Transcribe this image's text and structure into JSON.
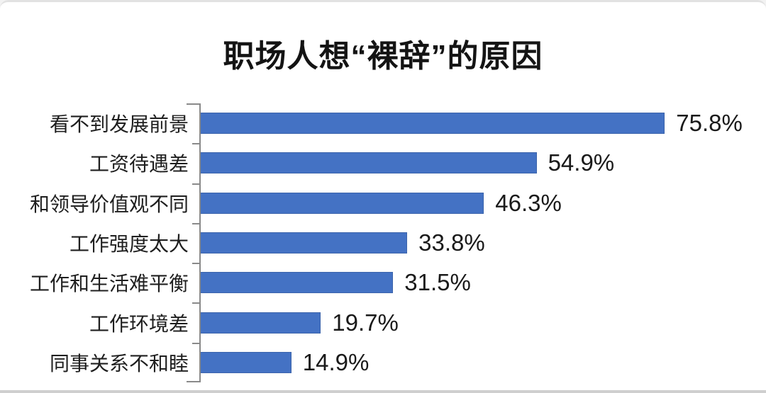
{
  "colors": {
    "bar_fill": "#4472c4",
    "bar_border": "#3c64ab",
    "axis": "#8a8a8a",
    "text": "#1f1f1f",
    "background": "#ffffff"
  },
  "chart_data": {
    "type": "bar",
    "orientation": "horizontal",
    "title": "职场人想“裸辞”的原因",
    "categories": [
      "看不到发展前景",
      "工资待遇差",
      "和领导价值观不同",
      "工作强度太大",
      "工作和生活难平衡",
      "工作环境差",
      "同事关系不和睦"
    ],
    "values": [
      75.8,
      54.9,
      46.3,
      33.8,
      31.5,
      19.7,
      14.9
    ],
    "value_labels": [
      "75.8%",
      "54.9%",
      "46.3%",
      "33.8%",
      "31.5%",
      "19.7%",
      "14.9%"
    ],
    "xlabel": "",
    "ylabel": "",
    "xlim": [
      0,
      90
    ],
    "grid": false,
    "legend": false,
    "data_labels_position": "end-of-bar"
  }
}
